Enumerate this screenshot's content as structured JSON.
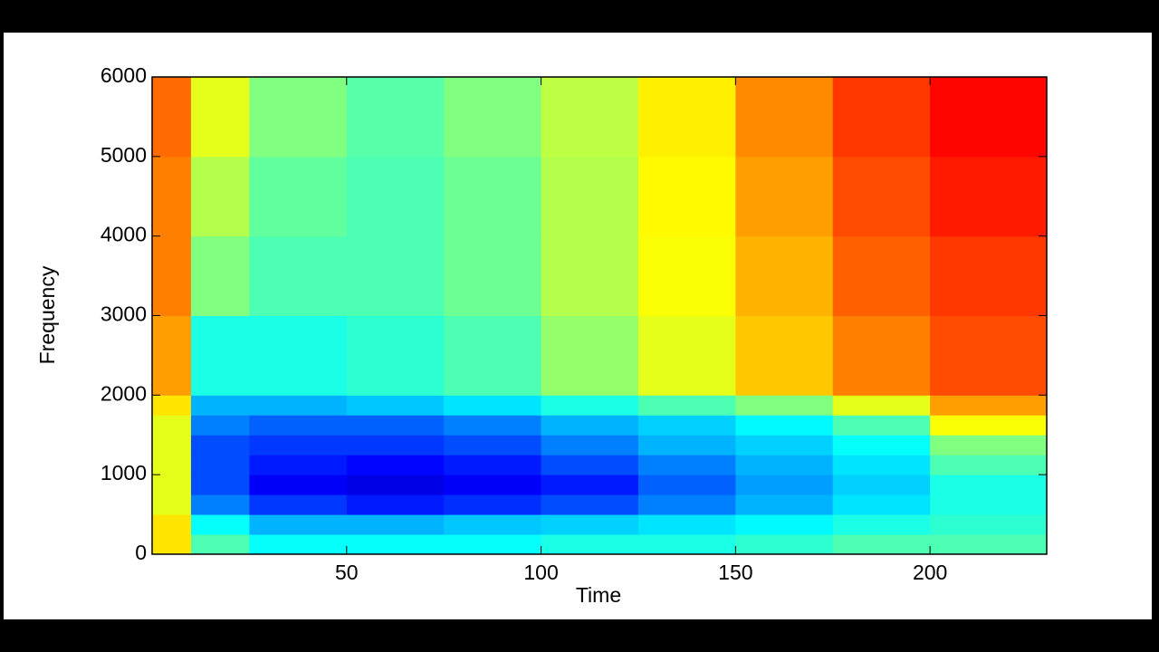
{
  "chart_data": {
    "type": "heatmap",
    "xlabel": "Time",
    "ylabel": "Frequency",
    "colormap": "jet",
    "zlim": [
      0,
      1
    ],
    "xlim": [
      0,
      230
    ],
    "xticks": [
      50,
      100,
      150,
      200
    ],
    "ylim": [
      0,
      6000
    ],
    "yticks": [
      0,
      1000,
      2000,
      3000,
      4000,
      5000,
      6000
    ],
    "xbins": [
      0,
      10,
      25,
      50,
      75,
      100,
      125,
      150,
      175,
      200,
      230
    ],
    "ybins": [
      0,
      250,
      500,
      750,
      1000,
      1250,
      1500,
      1750,
      2000,
      3000,
      4000,
      5000,
      6000
    ],
    "z": [
      [
        0.65,
        0.45,
        0.38,
        0.38,
        0.38,
        0.4,
        0.4,
        0.42,
        0.45,
        0.45
      ],
      [
        0.65,
        0.38,
        0.3,
        0.3,
        0.32,
        0.33,
        0.35,
        0.37,
        0.4,
        0.42
      ],
      [
        0.6,
        0.25,
        0.18,
        0.15,
        0.17,
        0.2,
        0.25,
        0.3,
        0.35,
        0.4
      ],
      [
        0.6,
        0.2,
        0.12,
        0.1,
        0.12,
        0.15,
        0.22,
        0.28,
        0.33,
        0.4
      ],
      [
        0.6,
        0.2,
        0.15,
        0.13,
        0.15,
        0.2,
        0.25,
        0.3,
        0.35,
        0.45
      ],
      [
        0.6,
        0.2,
        0.18,
        0.18,
        0.2,
        0.25,
        0.3,
        0.33,
        0.38,
        0.5
      ],
      [
        0.6,
        0.25,
        0.22,
        0.22,
        0.25,
        0.3,
        0.33,
        0.37,
        0.45,
        0.62
      ],
      [
        0.65,
        0.3,
        0.3,
        0.32,
        0.35,
        0.4,
        0.45,
        0.5,
        0.6,
        0.72
      ],
      [
        0.72,
        0.4,
        0.4,
        0.42,
        0.45,
        0.52,
        0.6,
        0.68,
        0.75,
        0.8
      ],
      [
        0.75,
        0.5,
        0.45,
        0.45,
        0.48,
        0.55,
        0.62,
        0.7,
        0.78,
        0.82
      ],
      [
        0.75,
        0.55,
        0.47,
        0.45,
        0.48,
        0.55,
        0.63,
        0.72,
        0.8,
        0.85
      ],
      [
        0.77,
        0.6,
        0.5,
        0.46,
        0.5,
        0.56,
        0.64,
        0.74,
        0.82,
        0.87
      ]
    ]
  }
}
